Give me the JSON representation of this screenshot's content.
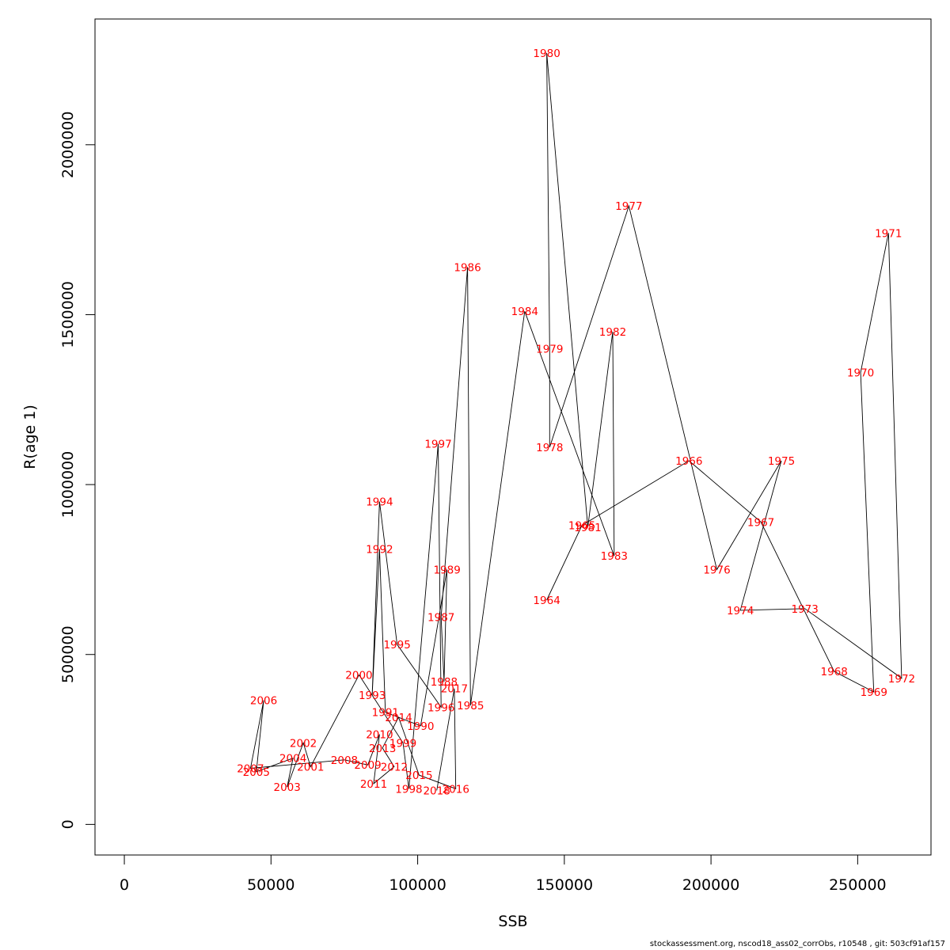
{
  "chart_data": {
    "type": "line",
    "xlabel": "SSB",
    "ylabel": "R(age 1)",
    "xlim": [
      -10000,
      275000
    ],
    "ylim": [
      -90000,
      2370000
    ],
    "x_ticks": [
      0,
      50000,
      100000,
      150000,
      200000,
      250000
    ],
    "y_ticks": [
      0,
      500000,
      1000000,
      1500000,
      2000000
    ],
    "line_color": "#000000",
    "label_color": "#ff0000",
    "points": [
      {
        "year": "1964",
        "x": 144000,
        "y": 660000
      },
      {
        "year": "1965",
        "x": 156000,
        "y": 880000
      },
      {
        "year": "1966",
        "x": 192500,
        "y": 1070000
      },
      {
        "year": "1967",
        "x": 217000,
        "y": 890000
      },
      {
        "year": "1968",
        "x": 242000,
        "y": 450000
      },
      {
        "year": "1969",
        "x": 255500,
        "y": 390000
      },
      {
        "year": "1970",
        "x": 251000,
        "y": 1330000
      },
      {
        "year": "1971",
        "x": 260500,
        "y": 1740000
      },
      {
        "year": "1972",
        "x": 265000,
        "y": 430000
      },
      {
        "year": "1973",
        "x": 232000,
        "y": 635000
      },
      {
        "year": "1974",
        "x": 210000,
        "y": 630000
      },
      {
        "year": "1975",
        "x": 224000,
        "y": 1070000
      },
      {
        "year": "1976",
        "x": 202000,
        "y": 750000
      },
      {
        "year": "1977",
        "x": 172000,
        "y": 1820000
      },
      {
        "year": "1978",
        "x": 145000,
        "y": 1110000
      },
      {
        "year": "1979",
        "x": 145000,
        "y": 1400000
      },
      {
        "year": "1980",
        "x": 144000,
        "y": 2270000
      },
      {
        "year": "1981",
        "x": 158000,
        "y": 875000
      },
      {
        "year": "1982",
        "x": 166500,
        "y": 1450000
      },
      {
        "year": "1983",
        "x": 167000,
        "y": 790000
      },
      {
        "year": "1984",
        "x": 136500,
        "y": 1510000
      },
      {
        "year": "1985",
        "x": 118000,
        "y": 350000
      },
      {
        "year": "1986",
        "x": 117000,
        "y": 1640000
      },
      {
        "year": "1987",
        "x": 108000,
        "y": 610000
      },
      {
        "year": "1988",
        "x": 109000,
        "y": 420000
      },
      {
        "year": "1989",
        "x": 110000,
        "y": 750000
      },
      {
        "year": "1990",
        "x": 101000,
        "y": 290000
      },
      {
        "year": "1991",
        "x": 89000,
        "y": 330000
      },
      {
        "year": "1992",
        "x": 87000,
        "y": 810000
      },
      {
        "year": "1993",
        "x": 84500,
        "y": 380000
      },
      {
        "year": "1994",
        "x": 87000,
        "y": 950000
      },
      {
        "year": "1995",
        "x": 93000,
        "y": 530000
      },
      {
        "year": "1996",
        "x": 108000,
        "y": 345000
      },
      {
        "year": "1997",
        "x": 107000,
        "y": 1120000
      },
      {
        "year": "1998",
        "x": 97000,
        "y": 105000
      },
      {
        "year": "1999",
        "x": 95000,
        "y": 240000
      },
      {
        "year": "2000",
        "x": 80000,
        "y": 440000
      },
      {
        "year": "2001",
        "x": 63500,
        "y": 170000
      },
      {
        "year": "2002",
        "x": 61000,
        "y": 240000
      },
      {
        "year": "2003",
        "x": 55500,
        "y": 110000
      },
      {
        "year": "2004",
        "x": 57500,
        "y": 195000
      },
      {
        "year": "2005",
        "x": 45000,
        "y": 155000
      },
      {
        "year": "2006",
        "x": 47500,
        "y": 365000
      },
      {
        "year": "2007",
        "x": 43000,
        "y": 165000
      },
      {
        "year": "2008",
        "x": 75000,
        "y": 190000
      },
      {
        "year": "2009",
        "x": 83000,
        "y": 175000
      },
      {
        "year": "2010",
        "x": 87000,
        "y": 265000
      },
      {
        "year": "2011",
        "x": 85000,
        "y": 120000
      },
      {
        "year": "2012",
        "x": 92000,
        "y": 170000
      },
      {
        "year": "2013",
        "x": 88000,
        "y": 225000
      },
      {
        "year": "2014",
        "x": 93500,
        "y": 315000
      },
      {
        "year": "2015",
        "x": 100500,
        "y": 145000
      },
      {
        "year": "2016",
        "x": 113000,
        "y": 105000
      },
      {
        "year": "2017",
        "x": 112500,
        "y": 400000
      },
      {
        "year": "2018",
        "x": 106500,
        "y": 100000
      }
    ]
  },
  "footer": {
    "text": "stockassessment.org, nscod18_ass02_corrObs, r10548 , git: 503cf91af157"
  }
}
